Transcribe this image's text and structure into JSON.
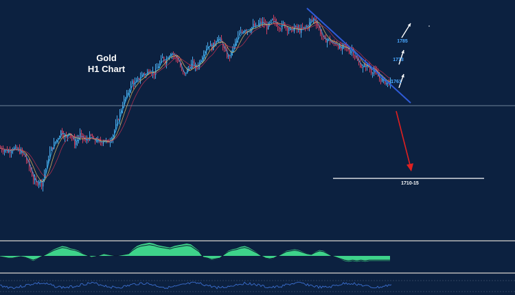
{
  "chart_data": {
    "type": "line",
    "title_line1": "Gold",
    "title_line2": "H1 Chart",
    "price_range": [
      1700,
      1800
    ],
    "price_series_points": [
      [
        0,
        1752
      ],
      [
        6,
        1751
      ],
      [
        12,
        1750
      ],
      [
        18,
        1752
      ],
      [
        24,
        1751
      ],
      [
        30,
        1750
      ],
      [
        36,
        1747
      ],
      [
        42,
        1741
      ],
      [
        48,
        1734
      ],
      [
        52,
        1731
      ],
      [
        56,
        1733
      ],
      [
        60,
        1731
      ],
      [
        64,
        1737
      ],
      [
        68,
        1743
      ],
      [
        72,
        1750
      ],
      [
        76,
        1753
      ],
      [
        80,
        1756
      ],
      [
        84,
        1758
      ],
      [
        88,
        1762
      ],
      [
        92,
        1760
      ],
      [
        96,
        1758
      ],
      [
        100,
        1762
      ],
      [
        104,
        1758
      ],
      [
        108,
        1755
      ],
      [
        112,
        1757
      ],
      [
        116,
        1760
      ],
      [
        120,
        1758
      ],
      [
        124,
        1756
      ],
      [
        128,
        1758
      ],
      [
        132,
        1759
      ],
      [
        136,
        1756
      ],
      [
        140,
        1757
      ],
      [
        144,
        1755
      ],
      [
        148,
        1756
      ],
      [
        152,
        1757
      ],
      [
        156,
        1755
      ],
      [
        160,
        1757
      ],
      [
        164,
        1760
      ],
      [
        168,
        1765
      ],
      [
        172,
        1770
      ],
      [
        176,
        1775
      ],
      [
        180,
        1780
      ],
      [
        184,
        1783
      ],
      [
        188,
        1787
      ],
      [
        192,
        1791
      ],
      [
        196,
        1790
      ],
      [
        200,
        1792
      ],
      [
        204,
        1794
      ],
      [
        208,
        1796
      ],
      [
        212,
        1795
      ],
      [
        216,
        1798
      ],
      [
        220,
        1797
      ],
      [
        224,
        1796
      ],
      [
        228,
        1799
      ],
      [
        232,
        1802
      ],
      [
        236,
        1805
      ],
      [
        240,
        1803
      ],
      [
        244,
        1806
      ],
      [
        248,
        1808
      ],
      [
        252,
        1807
      ],
      [
        256,
        1805
      ],
      [
        260,
        1803
      ],
      [
        264,
        1797
      ],
      [
        268,
        1795
      ],
      [
        272,
        1798
      ],
      [
        276,
        1800
      ],
      [
        280,
        1802
      ],
      [
        284,
        1799
      ],
      [
        288,
        1801
      ],
      [
        292,
        1804
      ],
      [
        296,
        1808
      ],
      [
        300,
        1811
      ],
      [
        304,
        1813
      ],
      [
        308,
        1811
      ],
      [
        312,
        1814
      ],
      [
        316,
        1817
      ],
      [
        320,
        1815
      ],
      [
        324,
        1812
      ],
      [
        328,
        1808
      ],
      [
        332,
        1805
      ],
      [
        336,
        1808
      ],
      [
        340,
        1812
      ],
      [
        344,
        1816
      ],
      [
        348,
        1819
      ],
      [
        352,
        1820
      ],
      [
        356,
        1822
      ],
      [
        360,
        1821
      ],
      [
        364,
        1822
      ],
      [
        368,
        1824
      ],
      [
        372,
        1823
      ],
      [
        376,
        1825
      ],
      [
        380,
        1826
      ],
      [
        384,
        1825
      ],
      [
        388,
        1823
      ],
      [
        392,
        1825
      ],
      [
        396,
        1827
      ],
      [
        400,
        1826
      ],
      [
        404,
        1824
      ],
      [
        408,
        1823
      ],
      [
        412,
        1825
      ],
      [
        416,
        1823
      ],
      [
        420,
        1822
      ],
      [
        424,
        1821
      ],
      [
        428,
        1823
      ],
      [
        432,
        1822
      ],
      [
        436,
        1821
      ],
      [
        440,
        1822
      ],
      [
        444,
        1823
      ],
      [
        448,
        1824
      ],
      [
        452,
        1827
      ],
      [
        456,
        1828
      ],
      [
        460,
        1826
      ],
      [
        464,
        1822
      ],
      [
        468,
        1818
      ],
      [
        472,
        1815
      ],
      [
        476,
        1816
      ],
      [
        480,
        1815
      ],
      [
        484,
        1813
      ],
      [
        488,
        1814
      ],
      [
        492,
        1812
      ],
      [
        496,
        1810
      ],
      [
        500,
        1812
      ],
      [
        504,
        1811
      ],
      [
        508,
        1809
      ],
      [
        512,
        1810
      ],
      [
        516,
        1806
      ],
      [
        520,
        1803
      ],
      [
        524,
        1801
      ],
      [
        528,
        1799
      ],
      [
        532,
        1801
      ],
      [
        536,
        1800
      ],
      [
        540,
        1797
      ],
      [
        544,
        1798
      ],
      [
        548,
        1795
      ],
      [
        552,
        1793
      ],
      [
        556,
        1792
      ],
      [
        560,
        1791
      ],
      [
        564,
        1790
      ],
      [
        568,
        1791
      ]
    ],
    "horizontal_level_price": 1790,
    "horizontal_line_target": 1720,
    "annotations": [
      {
        "text": "1785",
        "kind": "label",
        "price": 1818
      },
      {
        "text": "1773",
        "kind": "label",
        "price": 1811
      },
      {
        "text": "1761",
        "kind": "label",
        "price": 1802
      },
      {
        "text": "1710-15",
        "kind": "label",
        "price": 1718
      }
    ],
    "trend_line": {
      "from_price": 1830,
      "to_price": 1790
    },
    "oscillator_values": [
      -1,
      -2,
      -3,
      -3,
      -2,
      -1,
      -2,
      -4,
      -6,
      -4,
      -1,
      2,
      5,
      8,
      10,
      12,
      11,
      9,
      8,
      6,
      3,
      1,
      -2,
      -1,
      1,
      3,
      2,
      1,
      0,
      1,
      2,
      3,
      8,
      12,
      14,
      15,
      16,
      15,
      13,
      12,
      11,
      10,
      12,
      13,
      14,
      15,
      14,
      10,
      6,
      -2,
      -3,
      -5,
      -4,
      -3,
      2,
      6,
      8,
      9,
      11,
      12,
      10,
      7,
      4,
      0,
      -3,
      -4,
      -3,
      0,
      3,
      6,
      7,
      8,
      7,
      5,
      3,
      2,
      5,
      7,
      6,
      3,
      0,
      -2,
      -4,
      -6,
      -7,
      -6,
      -7,
      -6,
      -7,
      -6,
      -6,
      -6,
      -6,
      -6,
      -6
    ],
    "grid": false,
    "legend": "none"
  },
  "colors": {
    "background": "#0c2140",
    "candle_up": "#4aa8e8",
    "candle_down": "#d04060",
    "ma_fast": "#2a9fd6",
    "ma_mid": "#e8c060",
    "ma_slow": "#c03050",
    "trend_line": "#2f5bd8",
    "projection_arrow": "#e02020",
    "level_line": "#ffffff",
    "target_line": "#ffffff",
    "label_color": "#4aa8ff",
    "oscillator_fill": "#3ed38a",
    "oscillator_outline": "#0a1830",
    "separator": "#b8b8b8",
    "rsi_line": "#3b6fd0"
  }
}
